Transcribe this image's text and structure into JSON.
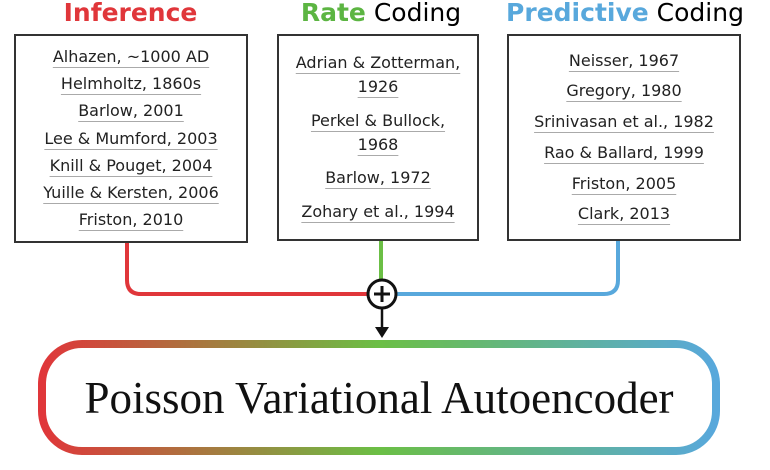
{
  "columns": [
    {
      "title": {
        "highlight": "Inference"
      },
      "refs": [
        "Alhazen, ~1000 AD",
        "Helmholtz, 1860s",
        "Barlow, 2001",
        "Lee & Mumford, 2003",
        "Knill & Pouget, 2004",
        "Yuille & Kersten, 2006",
        "Friston, 2010"
      ]
    },
    {
      "title": {
        "highlight": "Rate",
        "rest": "Coding"
      },
      "refs": [
        "Adrian & Zotterman, 1926",
        "Perkel & Bullock, 1968",
        "Barlow, 1972",
        "Zohary et al., 1994"
      ]
    },
    {
      "title": {
        "highlight": "Predictive",
        "rest": "Coding"
      },
      "refs": [
        "Neisser, 1967",
        "Gregory, 1980",
        "Srinivasan et al., 1982",
        "Rao & Ballard, 1999",
        "Friston, 2005",
        "Clark, 2013"
      ]
    }
  ],
  "output": "Poisson Variational Autoencoder"
}
